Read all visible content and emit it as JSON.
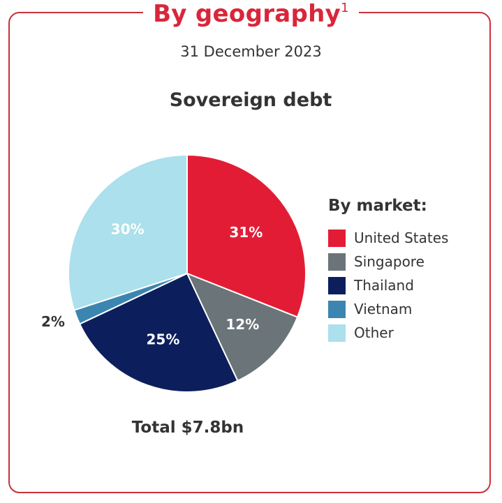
{
  "header": {
    "title": "By geography",
    "footnote": "1",
    "date": "31 December 2023"
  },
  "chart_data": {
    "type": "pie",
    "title": "Sovereign debt",
    "legend_title": "By market:",
    "legend_position": "right",
    "total_label": "Total $7.8bn",
    "slices": [
      {
        "name": "United States",
        "value": 31,
        "label": "31%",
        "color": "#e31c35",
        "label_color": "#ffffff"
      },
      {
        "name": "Singapore",
        "value": 12,
        "label": "12%",
        "color": "#6b7478",
        "label_color": "#ffffff"
      },
      {
        "name": "Thailand",
        "value": 25,
        "label": "25%",
        "color": "#0c1f5c",
        "label_color": "#ffffff"
      },
      {
        "name": "Vietnam",
        "value": 2,
        "label": "2%",
        "color": "#3b86b0",
        "label_color": "#333333"
      },
      {
        "name": "Other",
        "value": 30,
        "label": "30%",
        "color": "#abe0ec",
        "label_color": "#ffffff"
      }
    ]
  },
  "colors": {
    "accent": "#d9263a",
    "frame": "#c8313b",
    "text": "#333333"
  }
}
